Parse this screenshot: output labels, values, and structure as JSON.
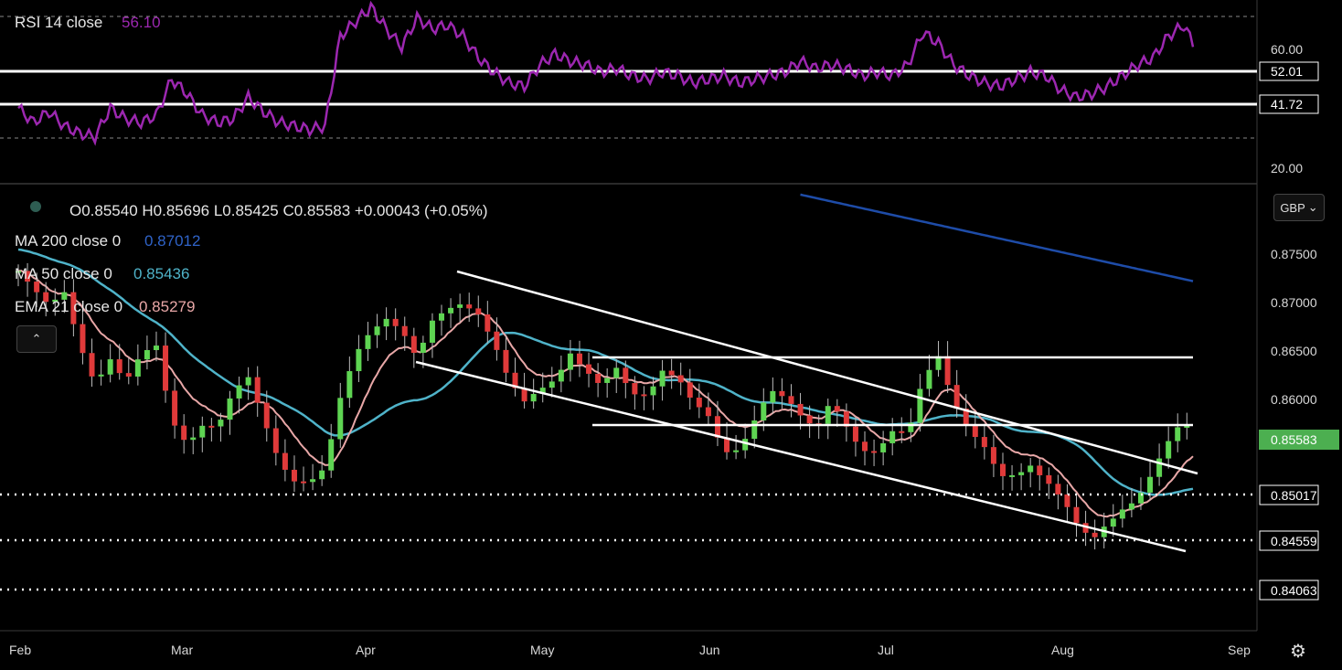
{
  "rsi_panel": {
    "title": "RSI 14 close",
    "value": "56.10",
    "scale_labels": [
      "60.00",
      "20.00"
    ],
    "level_tags": [
      "52.01",
      "41.72"
    ]
  },
  "main_panel": {
    "ohlc": "O0.85540  H0.85696  L0.85425  C0.85583  +0.00043 (+0.05%)",
    "ma200_label": "MA 200 close 0",
    "ma200_value": "0.87012",
    "ma50_label": "MA 50 close 0",
    "ma50_value": "0.85436",
    "ema21_label": "EMA 21 close 0",
    "ema21_value": "0.85279",
    "price_labels": [
      "0.87500",
      "0.87000",
      "0.86500",
      "0.86000"
    ],
    "level_tags": [
      "0.85583",
      "0.85017",
      "0.84559",
      "0.84063"
    ],
    "currency": "GBP",
    "currency_chevron": "⌄",
    "collapse_icon": "⌃",
    "settings_icon": "⚙"
  },
  "time_axis": [
    "Feb",
    "Mar",
    "Apr",
    "May",
    "Jun",
    "Jul",
    "Aug",
    "Sep"
  ],
  "colors": {
    "up": "#5ed452",
    "down": "#e03a3a",
    "rsi": "#9c27b0",
    "ma200": "#1e4ca8",
    "ma50": "#4fb3c9",
    "ema21": "#e8a7a7",
    "last_price_tag": "#4caf50"
  },
  "chart_data": {
    "type": "candlestick",
    "symbol_currency": "GBP",
    "x_axis_months": [
      "Feb",
      "Mar",
      "Apr",
      "May",
      "Jun",
      "Jul",
      "Aug",
      "Sep"
    ],
    "last_bar": {
      "open": 0.8554,
      "high": 0.85696,
      "low": 0.85425,
      "close": 0.85583,
      "change": 0.00043,
      "change_pct": 0.05
    },
    "indicators": {
      "MA200": 0.87012,
      "MA50": 0.85436,
      "EMA21": 0.85279,
      "RSI14": 56.1
    },
    "horizontal_levels": [
      0.8645,
      0.8575,
      0.85017,
      0.84559,
      0.84063
    ],
    "rsi_levels": [
      52.01,
      41.72
    ],
    "y_range": [
      0.838,
      0.879
    ],
    "rsi_range": [
      17,
      68
    ],
    "close_path": [
      [
        0,
        0.871
      ],
      [
        5,
        0.8685
      ],
      [
        10,
        0.867
      ],
      [
        15,
        0.869
      ],
      [
        20,
        0.865
      ],
      [
        25,
        0.8615
      ],
      [
        30,
        0.863
      ],
      [
        35,
        0.86
      ],
      [
        40,
        0.8625
      ],
      [
        45,
        0.864
      ],
      [
        50,
        0.858
      ],
      [
        55,
        0.856
      ],
      [
        60,
        0.857
      ],
      [
        65,
        0.856
      ],
      [
        70,
        0.859
      ],
      [
        75,
        0.861
      ],
      [
        80,
        0.858
      ],
      [
        85,
        0.8545
      ],
      [
        90,
        0.852
      ],
      [
        95,
        0.851
      ],
      [
        100,
        0.852
      ],
      [
        105,
        0.859
      ],
      [
        110,
        0.864
      ],
      [
        115,
        0.8665
      ],
      [
        120,
        0.867
      ],
      [
        125,
        0.865
      ],
      [
        130,
        0.862
      ],
      [
        135,
        0.866
      ],
      [
        140,
        0.868
      ],
      [
        145,
        0.869
      ],
      [
        150,
        0.8675
      ],
      [
        155,
        0.864
      ],
      [
        160,
        0.86
      ],
      [
        165,
        0.8585
      ],
      [
        170,
        0.8605
      ],
      [
        175,
        0.862
      ],
      [
        180,
        0.864
      ],
      [
        185,
        0.8615
      ],
      [
        190,
        0.8595
      ],
      [
        195,
        0.8615
      ],
      [
        200,
        0.86
      ],
      [
        205,
        0.8605
      ],
      [
        210,
        0.8625
      ],
      [
        215,
        0.861
      ],
      [
        220,
        0.858
      ],
      [
        225,
        0.857
      ],
      [
        230,
        0.8545
      ],
      [
        235,
        0.8555
      ],
      [
        240,
        0.858
      ],
      [
        245,
        0.86
      ],
      [
        250,
        0.8585
      ],
      [
        255,
        0.857
      ],
      [
        260,
        0.8565
      ],
      [
        265,
        0.86
      ],
      [
        270,
        0.8575
      ],
      [
        275,
        0.8545
      ],
      [
        280,
        0.8535
      ],
      [
        285,
        0.8555
      ],
      [
        290,
        0.856
      ],
      [
        295,
        0.862
      ],
      [
        300,
        0.864
      ],
      [
        305,
        0.859
      ],
      [
        310,
        0.8555
      ],
      [
        315,
        0.854
      ],
      [
        320,
        0.852
      ],
      [
        325,
        0.853
      ],
      [
        330,
        0.854
      ],
      [
        335,
        0.852
      ],
      [
        340,
        0.8495
      ],
      [
        345,
        0.847
      ],
      [
        350,
        0.846
      ],
      [
        355,
        0.8485
      ],
      [
        360,
        0.85
      ],
      [
        365,
        0.8505
      ],
      [
        370,
        0.852
      ],
      [
        375,
        0.8545
      ],
      [
        380,
        0.857
      ],
      [
        383,
        0.8558
      ]
    ],
    "rsi_path": [
      [
        0,
        38
      ],
      [
        5,
        34
      ],
      [
        10,
        37
      ],
      [
        15,
        33
      ],
      [
        20,
        31
      ],
      [
        25,
        30
      ],
      [
        30,
        38
      ],
      [
        35,
        35
      ],
      [
        40,
        34
      ],
      [
        45,
        36
      ],
      [
        50,
        46
      ],
      [
        55,
        42
      ],
      [
        60,
        36
      ],
      [
        65,
        34
      ],
      [
        70,
        35
      ],
      [
        75,
        41
      ],
      [
        80,
        37
      ],
      [
        85,
        34
      ],
      [
        90,
        33
      ],
      [
        95,
        32
      ],
      [
        100,
        33
      ],
      [
        105,
        58
      ],
      [
        110,
        62
      ],
      [
        115,
        66
      ],
      [
        120,
        60
      ],
      [
        125,
        55
      ],
      [
        130,
        63
      ],
      [
        135,
        60
      ],
      [
        140,
        61
      ],
      [
        145,
        58
      ],
      [
        150,
        52
      ],
      [
        155,
        48
      ],
      [
        160,
        45
      ],
      [
        165,
        44
      ],
      [
        170,
        50
      ],
      [
        175,
        53
      ],
      [
        180,
        51
      ],
      [
        185,
        50
      ],
      [
        190,
        48
      ],
      [
        195,
        49
      ],
      [
        200,
        47
      ],
      [
        205,
        46
      ],
      [
        210,
        48
      ],
      [
        215,
        47
      ],
      [
        220,
        45
      ],
      [
        225,
        46
      ],
      [
        230,
        47
      ],
      [
        235,
        45
      ],
      [
        240,
        46
      ],
      [
        245,
        47
      ],
      [
        250,
        48
      ],
      [
        255,
        51
      ],
      [
        260,
        49
      ],
      [
        265,
        50
      ],
      [
        270,
        49
      ],
      [
        275,
        47
      ],
      [
        280,
        48
      ],
      [
        285,
        47
      ],
      [
        290,
        50
      ],
      [
        295,
        59
      ],
      [
        300,
        56
      ],
      [
        305,
        50
      ],
      [
        310,
        47
      ],
      [
        315,
        45
      ],
      [
        320,
        44
      ],
      [
        325,
        46
      ],
      [
        330,
        48
      ],
      [
        335,
        47
      ],
      [
        340,
        43
      ],
      [
        345,
        41
      ],
      [
        350,
        42
      ],
      [
        355,
        44
      ],
      [
        360,
        47
      ],
      [
        365,
        50
      ],
      [
        370,
        52
      ],
      [
        375,
        58
      ],
      [
        380,
        61
      ],
      [
        383,
        56.1
      ]
    ]
  }
}
